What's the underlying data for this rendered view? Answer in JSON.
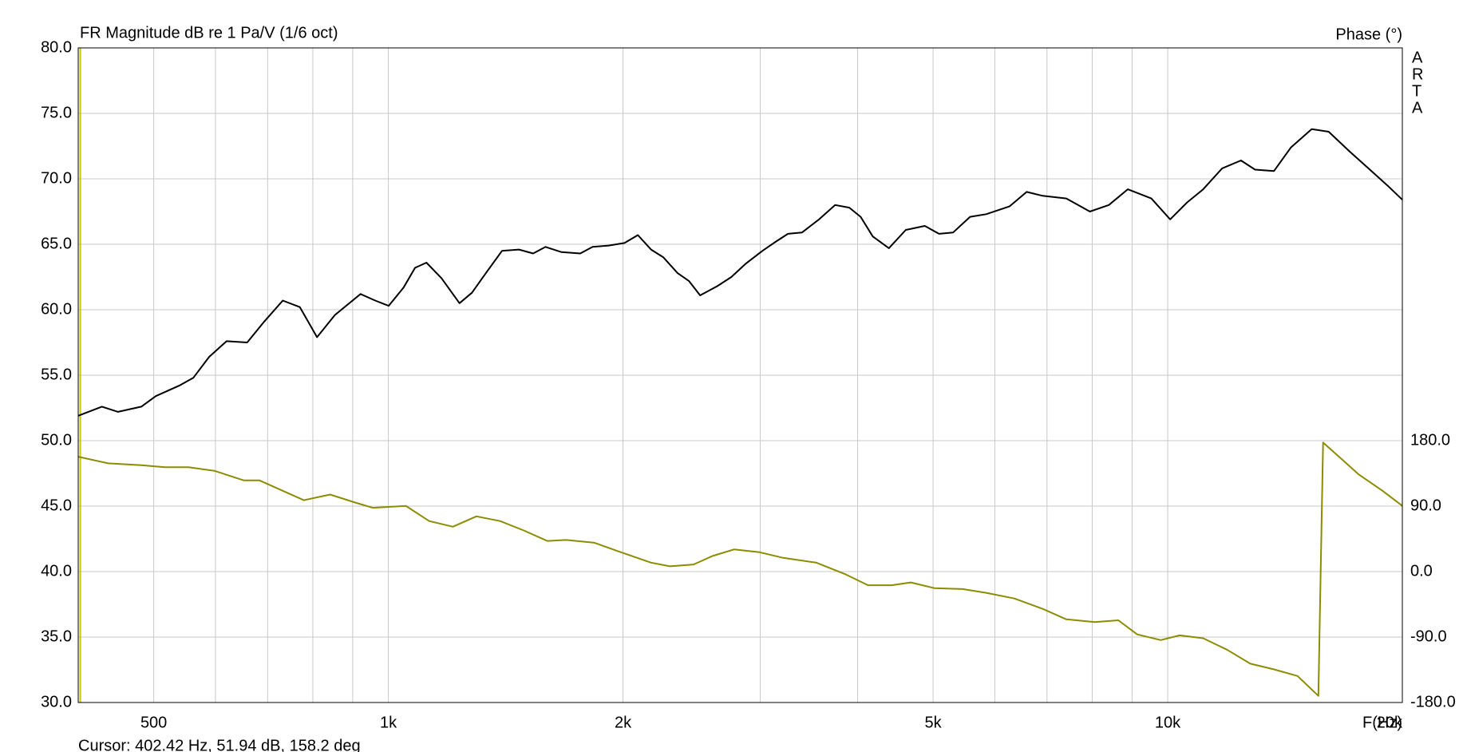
{
  "chart_data": {
    "type": "line",
    "title": "FR Magnitude dB re 1 Pa/V (1/6 oct)",
    "y2label": "Phase (°)",
    "xlabel": "F(Hz)",
    "watermark": [
      "A",
      "R",
      "T",
      "A"
    ],
    "cursor": {
      "label": "Cursor: 402.42 Hz, 51.94 dB, 158.2 deg",
      "x": 402.42,
      "color": "#c8c800"
    },
    "xscale": "log",
    "grid": true,
    "xlim": [
      400,
      20000
    ],
    "xticks": [
      500,
      {
        "value": 1000,
        "label": "1k"
      },
      {
        "value": 2000,
        "label": "2k"
      },
      {
        "value": 5000,
        "label": "5k"
      },
      {
        "value": 10000,
        "label": "10k"
      },
      {
        "value": 20000,
        "label": "20k"
      }
    ],
    "xminor": [
      600,
      700,
      800,
      900,
      3000,
      4000,
      6000,
      7000,
      8000,
      9000
    ],
    "ylim": [
      30,
      80
    ],
    "yticks": [
      {
        "value": 30,
        "label": "30.0"
      },
      {
        "value": 35,
        "label": "35.0"
      },
      {
        "value": 40,
        "label": "40.0"
      },
      {
        "value": 45,
        "label": "45.0"
      },
      {
        "value": 50,
        "label": "50.0"
      },
      {
        "value": 55,
        "label": "55.0"
      },
      {
        "value": 60,
        "label": "60.0"
      },
      {
        "value": 65,
        "label": "65.0"
      },
      {
        "value": 70,
        "label": "70.0"
      },
      {
        "value": 75,
        "label": "75.0"
      },
      {
        "value": 80,
        "label": "80.0"
      }
    ],
    "y2lim": [
      -180,
      720
    ],
    "y2ticks": [
      {
        "value": -180,
        "label": "-180.0"
      },
      {
        "value": -90,
        "label": "-90.0"
      },
      {
        "value": 0,
        "label": "0.0"
      },
      {
        "value": 90,
        "label": "90.0"
      },
      {
        "value": 180,
        "label": "180.0"
      }
    ],
    "series": [
      {
        "color": "#000000",
        "x": [
          400,
          429,
          450,
          482,
          503,
          539,
          562,
          589,
          620,
          659,
          693,
          732,
          770,
          810,
          854,
          921,
          962,
          1001,
          1046,
          1082,
          1119,
          1170,
          1234,
          1280,
          1334,
          1399,
          1471,
          1534,
          1591,
          1668,
          1763,
          1828,
          1917,
          2009,
          2090,
          2173,
          2254,
          2350,
          2430,
          2512,
          2642,
          2755,
          2872,
          3020,
          3123,
          3256,
          3395,
          3570,
          3744,
          3903,
          4036,
          4184,
          4388,
          4613,
          4879,
          5088,
          5305,
          5577,
          5849,
          6269,
          6592,
          6912,
          7411,
          7946,
          8403,
          8887,
          9528,
          10072,
          10590,
          11105,
          11743,
          12416,
          12943,
          13687,
          14392,
          15301,
          16088,
          17109,
          18092,
          19131,
          20000
        ],
        "values": [
          51.9,
          52.6,
          52.2,
          52.6,
          53.4,
          54.2,
          54.8,
          56.4,
          57.6,
          57.5,
          59.1,
          60.7,
          60.2,
          57.9,
          59.6,
          61.2,
          60.7,
          60.3,
          61.7,
          63.2,
          63.6,
          62.4,
          60.5,
          61.3,
          62.8,
          64.5,
          64.6,
          64.3,
          64.8,
          64.4,
          64.3,
          64.8,
          64.9,
          65.1,
          65.7,
          64.6,
          64.0,
          62.8,
          62.2,
          61.1,
          61.8,
          62.5,
          63.5,
          64.5,
          65.1,
          65.8,
          65.9,
          66.9,
          68.0,
          67.8,
          67.1,
          65.6,
          64.7,
          66.1,
          66.4,
          65.8,
          65.9,
          67.1,
          67.3,
          67.9,
          69.0,
          68.7,
          68.5,
          67.5,
          68.0,
          69.2,
          68.5,
          66.9,
          68.2,
          69.2,
          70.8,
          71.4,
          70.7,
          70.6,
          72.4,
          73.8,
          73.6,
          72.1,
          70.8,
          69.5,
          68.4
        ]
      },
      {
        "color": "#8c8c00",
        "axis": "y2",
        "x": [
          400,
          437,
          482,
          517,
          554,
          599,
          652,
          683,
          732,
          779,
          842,
          903,
          955,
          1053,
          1128,
          1210,
          1297,
          1391,
          1492,
          1599,
          1691,
          1839,
          1972,
          2173,
          2298,
          2464,
          2605,
          2778,
          2995,
          3211,
          3540,
          3849,
          4126,
          4424,
          4679,
          5016,
          5456,
          5849,
          6357,
          6912,
          7411,
          8060,
          8643,
          9138,
          9796,
          10357,
          11105,
          11905,
          12766,
          13687,
          14675,
          15605,
          15823,
          16637,
          17596,
          18864,
          20000
        ],
        "values": [
          157.9,
          148.8,
          146.2,
          143.6,
          143.6,
          138.4,
          125.4,
          125.4,
          111.1,
          98.1,
          105.9,
          95.5,
          87.7,
          90.3,
          69.5,
          61.7,
          76.0,
          69.5,
          56.5,
          42.2,
          43.5,
          39.6,
          27.9,
          12.3,
          7.2,
          9.8,
          21.4,
          30.5,
          26.6,
          18.9,
          12.3,
          -3.2,
          -18.8,
          -18.8,
          -14.9,
          -22.7,
          -24.0,
          -29.2,
          -37.0,
          -51.3,
          -65.6,
          -69.5,
          -66.9,
          -86.4,
          -94.2,
          -87.7,
          -91.6,
          -107.2,
          -126.7,
          -134.4,
          -143.6,
          -170.9,
          177.4,
          156.6,
          133.2,
          111.1,
          90.3
        ]
      }
    ]
  }
}
